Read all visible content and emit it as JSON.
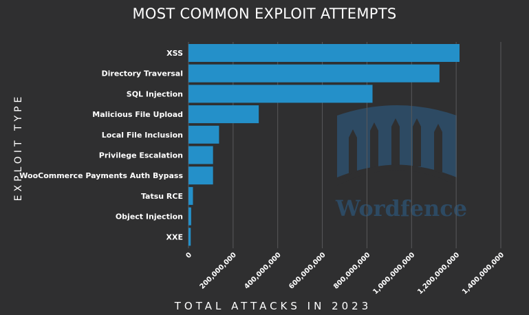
{
  "chart_data": {
    "type": "bar",
    "orientation": "horizontal",
    "title": "MOST COMMON EXPLOIT ATTEMPTS",
    "xlabel": "TOTAL ATTACKS IN 2023",
    "ylabel": "EXPLOIT TYPE",
    "categories": [
      "XSS",
      "Directory Traversal",
      "SQL Injection",
      "Malicious File Upload",
      "Local File Inclusion",
      "Privilege Escalation",
      "WooCommerce Payments Auth Bypass",
      "Tatsu RCE",
      "Object Injection",
      "XXE"
    ],
    "values": [
      1215000000,
      1125000000,
      825000000,
      315000000,
      137000000,
      110000000,
      110000000,
      20000000,
      12000000,
      10000000
    ],
    "xlim": [
      0,
      1400000000
    ],
    "xticks": [
      0,
      200000000,
      400000000,
      600000000,
      800000000,
      1000000000,
      1200000000,
      1400000000
    ],
    "xtick_labels": [
      "0",
      "200,000,000",
      "400,000,000",
      "600,000,000",
      "800,000,000",
      "1,000,000,000",
      "1,200,000,000",
      "1,400,000,000"
    ],
    "grid": "vertical",
    "legend": "none",
    "bar_color": "#2490c9",
    "background": "#2f2f30"
  },
  "watermark": {
    "text": "Wordfence",
    "color": "#2d4a63"
  }
}
